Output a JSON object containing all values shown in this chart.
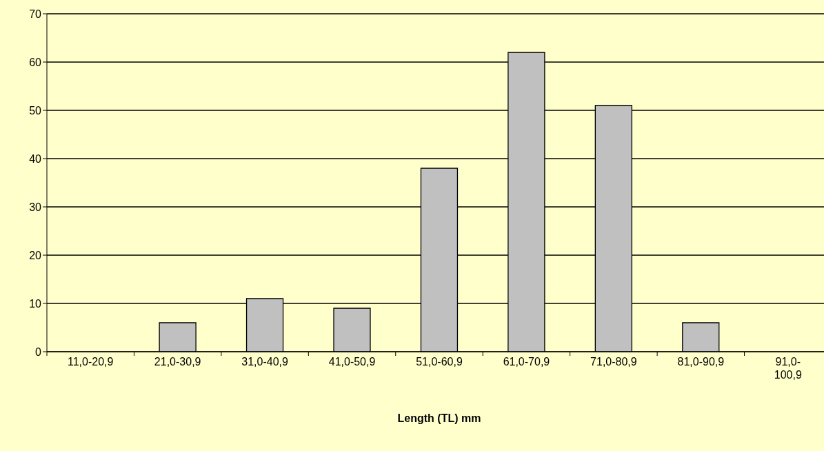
{
  "chart_data": {
    "type": "bar",
    "xlabel": "Length (TL) mm",
    "categories": [
      "11,0-20,9",
      "21,0-30,9",
      "31,0-40,9",
      "41,0-50,9",
      "51,0-60,9",
      "61,0-70,9",
      "71,0-80,9",
      "81,0-90,9",
      "91,0-100,9"
    ],
    "values": [
      0,
      6,
      11,
      9,
      38,
      62,
      51,
      6,
      0
    ],
    "color": "#c0c0c0",
    "ylim": [
      0,
      70
    ],
    "yticks": [
      0,
      10,
      20,
      30,
      40,
      50,
      60,
      70
    ],
    "grid": "y"
  }
}
